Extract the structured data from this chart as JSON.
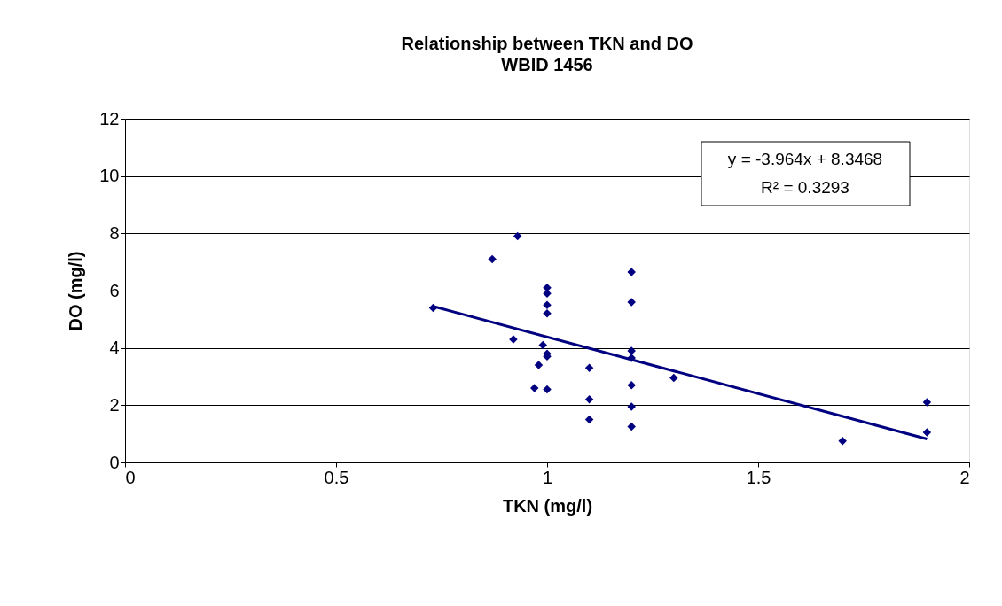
{
  "chart_data": {
    "type": "scatter",
    "title": "Relationship between TKN and DO",
    "subtitle": "WBID 1456",
    "xlabel": "TKN (mg/l)",
    "ylabel": "DO (mg/l)",
    "xlim": [
      0,
      2
    ],
    "xticks": [
      0,
      0.5,
      1,
      1.5,
      2
    ],
    "ylim": [
      0,
      12
    ],
    "yticks": [
      0,
      2,
      4,
      6,
      8,
      10,
      12
    ],
    "grid": "y",
    "legend": false,
    "series": [
      {
        "marker": "diamond",
        "color": "#000080",
        "x": [
          0.73,
          0.87,
          0.93,
          0.92,
          0.97,
          0.98,
          0.99,
          1.0,
          1.0,
          1.0,
          1.0,
          1.0,
          1.0,
          1.0,
          1.1,
          1.1,
          1.1,
          1.2,
          1.2,
          1.2,
          1.2,
          1.2,
          1.2,
          1.2,
          1.3,
          1.7,
          1.9,
          1.9
        ],
        "values": [
          5.4,
          7.1,
          7.9,
          4.3,
          2.6,
          3.4,
          4.1,
          6.1,
          5.9,
          5.5,
          5.2,
          3.8,
          3.7,
          2.55,
          3.3,
          2.2,
          1.5,
          6.65,
          5.6,
          3.9,
          3.65,
          2.7,
          1.95,
          1.25,
          2.95,
          0.75,
          2.1,
          1.05
        ]
      },
      {
        "type": "line",
        "marker": "none",
        "color": "#000080",
        "x": [
          0.73,
          1.9
        ],
        "values": [
          5.45,
          0.82
        ]
      }
    ],
    "annotations": [
      "y = -3.964x + 8.3468",
      "R² = 0.3293"
    ]
  }
}
